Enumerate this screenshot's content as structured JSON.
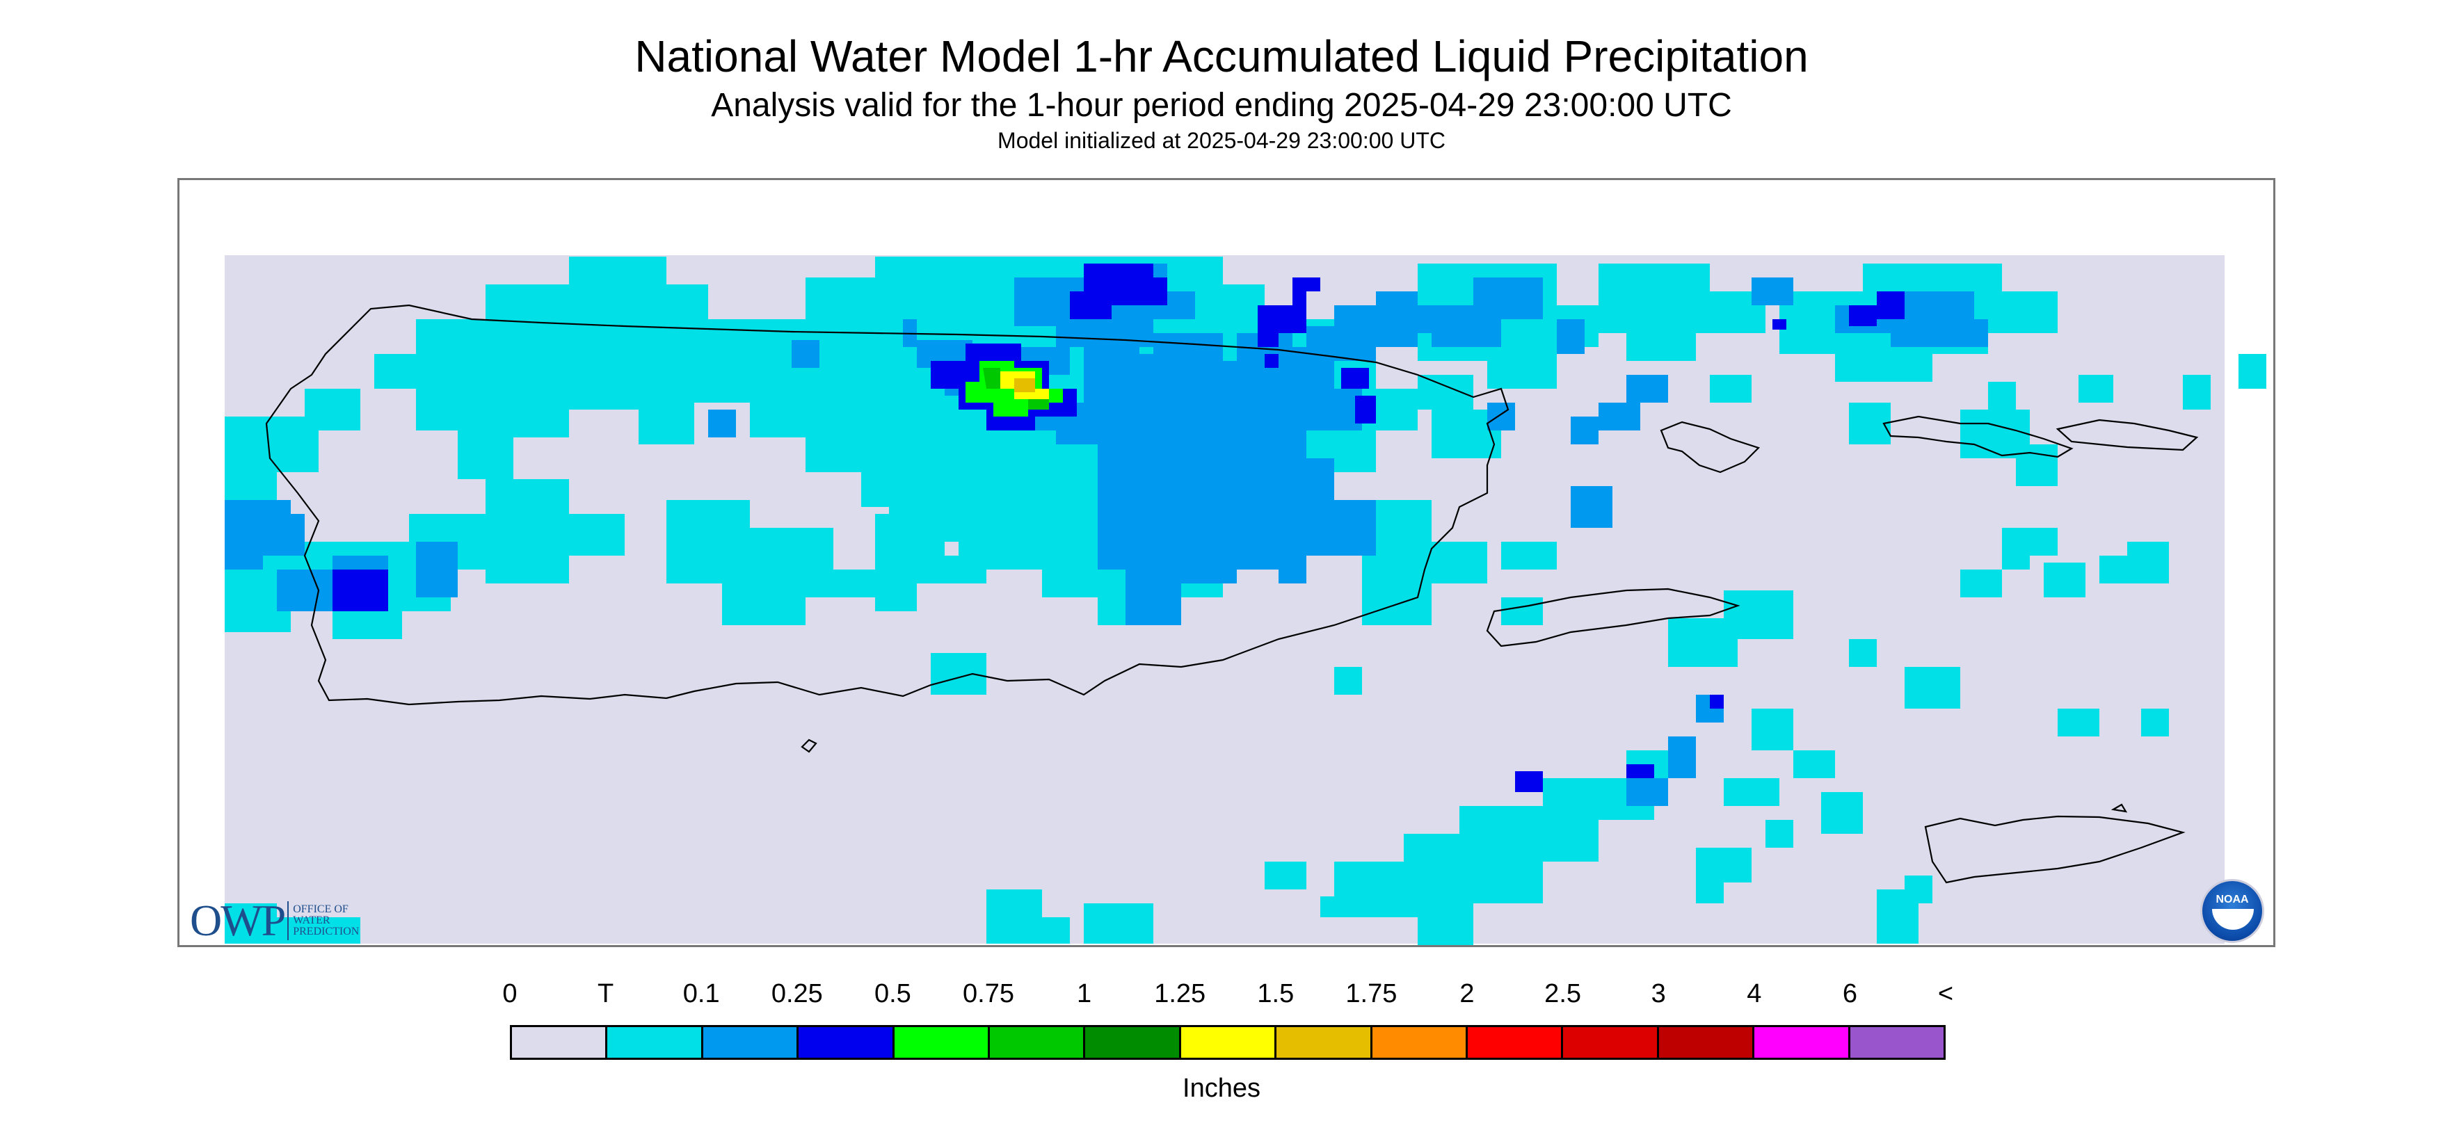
{
  "header": {
    "title": "National Water Model 1-hr Accumulated Liquid Precipitation",
    "subtitle": "Analysis valid for the 1-hour period ending 2025-04-29 23:00:00 UTC",
    "init": "Model initialized at 2025-04-29 23:00:00 UTC"
  },
  "logos": {
    "owp_mark": "OWP",
    "owp_text": [
      "OFFICE OF",
      "WATER",
      "PREDICTION"
    ],
    "noaa_text": "NOAA"
  },
  "legend": {
    "labels": [
      "0",
      "T",
      "0.1",
      "0.25",
      "0.5",
      "0.75",
      "1",
      "1.25",
      "1.5",
      "1.75",
      "2",
      "2.5",
      "3",
      "4",
      "6",
      "<"
    ],
    "colors": [
      "#dcdcec",
      "#00e0e6",
      "#0099f0",
      "#0000ee",
      "#00ff00",
      "#00c800",
      "#008c00",
      "#ffff00",
      "#e6be00",
      "#ff8c00",
      "#ff0000",
      "#dc0000",
      "#be0000",
      "#ff00ff",
      "#9955cc"
    ],
    "units": "Inches"
  },
  "map": {
    "background_color": "#dcdcec",
    "outline_color": "#000000"
  }
}
